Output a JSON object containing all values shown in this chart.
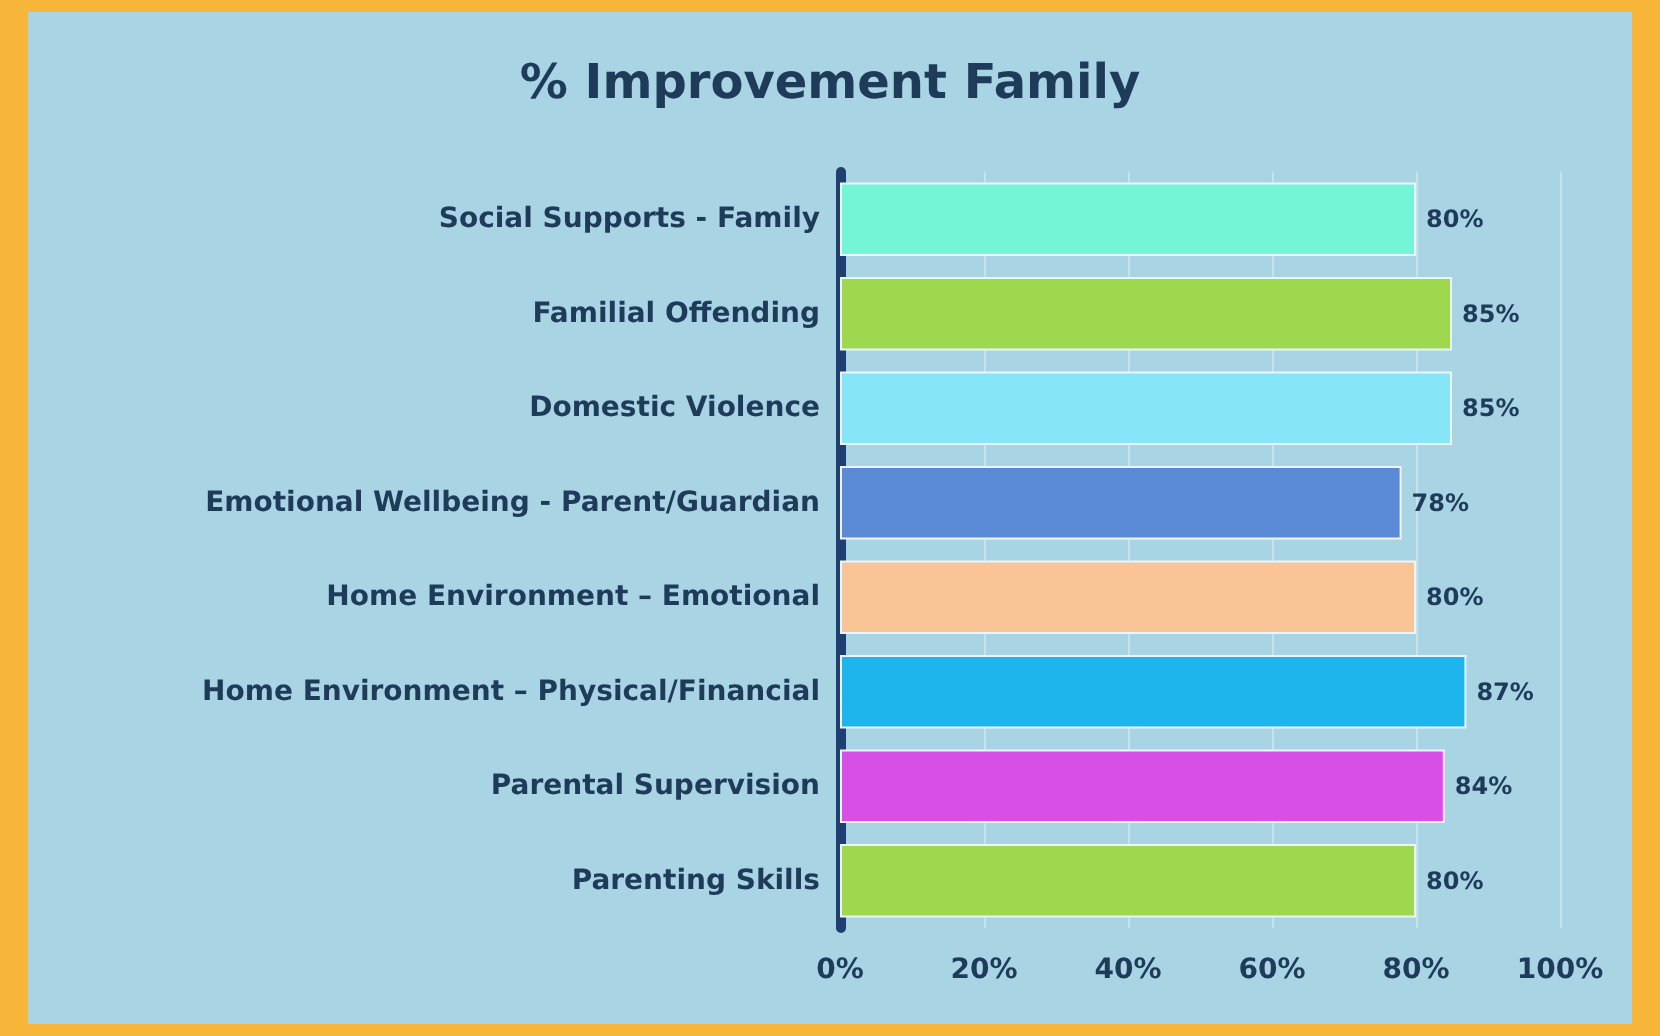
{
  "chart_data": {
    "type": "bar",
    "orientation": "horizontal",
    "title": "% Improvement Family",
    "categories": [
      "Social Supports - Family",
      "Familial Offending",
      "Domestic Violence",
      "Emotional Wellbeing - Parent/Guardian",
      "Home Environment – Emotional",
      "Home Environment – Physical/Financial",
      "Parental Supervision",
      "Parenting Skills"
    ],
    "values": [
      80,
      85,
      85,
      78,
      80,
      87,
      84,
      80
    ],
    "colors": [
      "#74f5d6",
      "#9dd84e",
      "#86e6f8",
      "#5a8ad6",
      "#f9c596",
      "#1eb4ec",
      "#d84fe6",
      "#9dd84e"
    ],
    "value_labels": [
      "80%",
      "85%",
      "85%",
      "78%",
      "80%",
      "87%",
      "84%",
      "80%"
    ],
    "xlim": [
      0,
      100
    ],
    "xticks": [
      {
        "value": 0,
        "label": "0%"
      },
      {
        "value": 20,
        "label": "20%"
      },
      {
        "value": 40,
        "label": "40%"
      },
      {
        "value": 60,
        "label": "60%"
      },
      {
        "value": 80,
        "label": "80%"
      },
      {
        "value": 100,
        "label": "100%"
      }
    ],
    "grid": "x"
  }
}
